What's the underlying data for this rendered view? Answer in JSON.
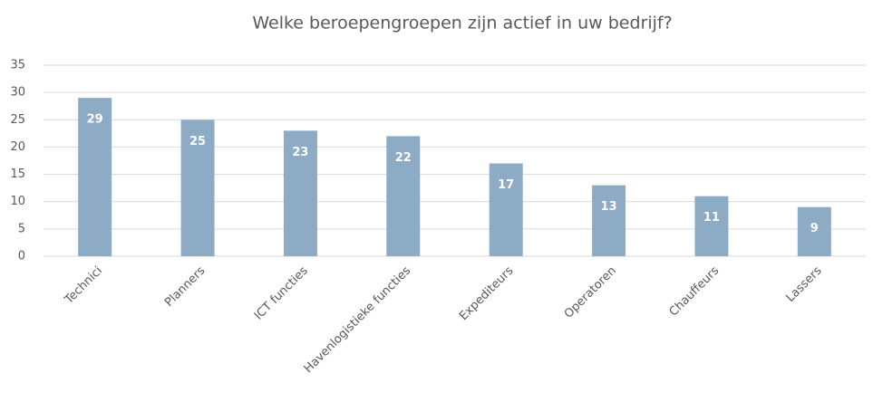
{
  "chart_data": {
    "type": "bar",
    "title": "Welke beroepengroepen zijn actief in uw bedrijf?",
    "categories": [
      "Technici",
      "Planners",
      "ICT functies",
      "Havenlogistieke functies",
      "Expediteurs",
      "Operatoren",
      "Chauffeurs",
      "Lassers"
    ],
    "values": [
      29,
      25,
      23,
      22,
      17,
      13,
      11,
      9
    ],
    "color": "#8eabc6",
    "ylim": [
      0,
      35
    ],
    "yticks": [
      0,
      5,
      10,
      15,
      20,
      25,
      30,
      35
    ],
    "grid": true
  }
}
